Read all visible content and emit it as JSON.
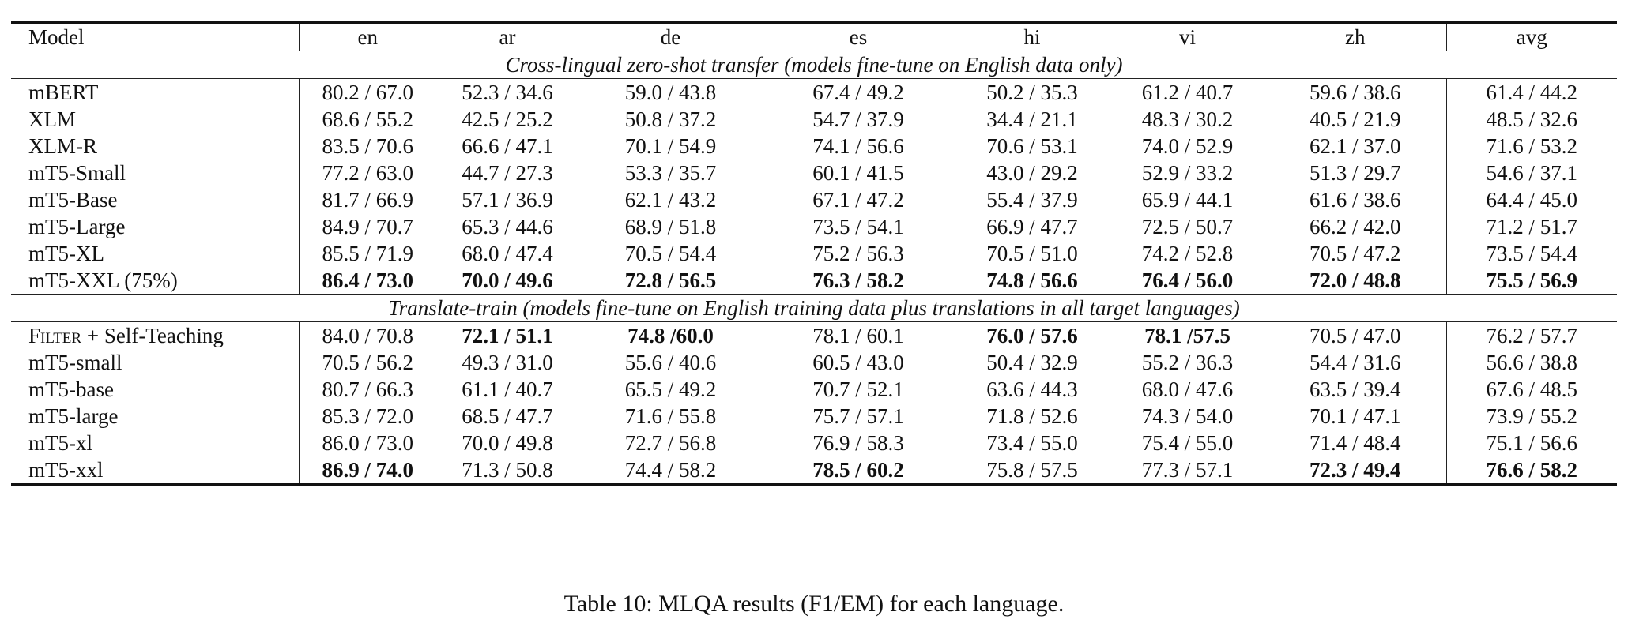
{
  "header": {
    "model": "Model",
    "languages": [
      "en",
      "ar",
      "de",
      "es",
      "hi",
      "vi",
      "zh"
    ],
    "avg": "avg"
  },
  "sections": [
    {
      "title": "Cross-lingual zero-shot transfer (models fine-tune on English data only)",
      "rows": [
        {
          "model": "mBERT",
          "cells": [
            {
              "text": "80.2 / 67.0"
            },
            {
              "text": "52.3 / 34.6"
            },
            {
              "text": "59.0 / 43.8"
            },
            {
              "text": "67.4 / 49.2"
            },
            {
              "text": "50.2 / 35.3"
            },
            {
              "text": "61.2 / 40.7"
            },
            {
              "text": "59.6 / 38.6"
            },
            {
              "text": "61.4 / 44.2"
            }
          ]
        },
        {
          "model": "XLM",
          "cells": [
            {
              "text": "68.6 / 55.2"
            },
            {
              "text": "42.5 / 25.2"
            },
            {
              "text": "50.8 / 37.2"
            },
            {
              "text": "54.7 / 37.9"
            },
            {
              "text": "34.4 / 21.1"
            },
            {
              "text": "48.3 / 30.2"
            },
            {
              "text": "40.5 / 21.9"
            },
            {
              "text": "48.5 / 32.6"
            }
          ]
        },
        {
          "model": "XLM-R",
          "cells": [
            {
              "text": "83.5 / 70.6"
            },
            {
              "text": "66.6 / 47.1"
            },
            {
              "text": "70.1 / 54.9"
            },
            {
              "text": "74.1 / 56.6"
            },
            {
              "text": "70.6 / 53.1"
            },
            {
              "text": "74.0 / 52.9"
            },
            {
              "text": "62.1 / 37.0"
            },
            {
              "text": "71.6 / 53.2"
            }
          ]
        },
        {
          "model": "mT5-Small",
          "cells": [
            {
              "text": "77.2 / 63.0"
            },
            {
              "text": "44.7 / 27.3"
            },
            {
              "text": "53.3 / 35.7"
            },
            {
              "text": "60.1 / 41.5"
            },
            {
              "text": "43.0 / 29.2"
            },
            {
              "text": "52.9 / 33.2"
            },
            {
              "text": "51.3 / 29.7"
            },
            {
              "text": "54.6 / 37.1"
            }
          ]
        },
        {
          "model": "mT5-Base",
          "cells": [
            {
              "text": "81.7 / 66.9"
            },
            {
              "text": "57.1 / 36.9"
            },
            {
              "text": "62.1 / 43.2"
            },
            {
              "text": "67.1 / 47.2"
            },
            {
              "text": "55.4 / 37.9"
            },
            {
              "text": "65.9 / 44.1"
            },
            {
              "text": "61.6 / 38.6"
            },
            {
              "text": "64.4 / 45.0"
            }
          ]
        },
        {
          "model": "mT5-Large",
          "cells": [
            {
              "text": "84.9 / 70.7"
            },
            {
              "text": "65.3 / 44.6"
            },
            {
              "text": "68.9 / 51.8"
            },
            {
              "text": "73.5 / 54.1"
            },
            {
              "text": "66.9 / 47.7"
            },
            {
              "text": "72.5 / 50.7"
            },
            {
              "text": "66.2 / 42.0"
            },
            {
              "text": "71.2 / 51.7"
            }
          ]
        },
        {
          "model": "mT5-XL",
          "cells": [
            {
              "text": "85.5 / 71.9"
            },
            {
              "text": "68.0 / 47.4"
            },
            {
              "text": "70.5 / 54.4"
            },
            {
              "text": "75.2 / 56.3"
            },
            {
              "text": "70.5 / 51.0"
            },
            {
              "text": "74.2 / 52.8"
            },
            {
              "text": "70.5 / 47.2"
            },
            {
              "text": "73.5 / 54.4"
            }
          ]
        },
        {
          "model": "mT5-XXL (75%)",
          "cells": [
            {
              "text": "86.4 / 73.0",
              "bold": true
            },
            {
              "text": "70.0 / 49.6",
              "bold": true
            },
            {
              "text": "72.8 / 56.5",
              "bold": true
            },
            {
              "text": "76.3 / 58.2",
              "bold": true
            },
            {
              "text": "74.8 / 56.6",
              "bold": true
            },
            {
              "text": "76.4 / 56.0",
              "bold": true
            },
            {
              "text": "72.0 / 48.8",
              "bold": true
            },
            {
              "text": "75.5 / 56.9",
              "bold": true
            }
          ]
        }
      ]
    },
    {
      "title": "Translate-train (models fine-tune on English training data plus translations in all target languages)",
      "rows": [
        {
          "model": "Filter + Self-Teaching",
          "smallcaps_prefix": "Filter",
          "model_rest": " + Self-Teaching",
          "cells": [
            {
              "text": "84.0 / 70.8"
            },
            {
              "text": "72.1 / 51.1",
              "bold": true
            },
            {
              "text": "74.8 /60.0",
              "bold": true
            },
            {
              "text": "78.1 / 60.1"
            },
            {
              "text": "76.0 / 57.6",
              "bold": true
            },
            {
              "text": "78.1 /57.5",
              "bold": true
            },
            {
              "text": "70.5 / 47.0"
            },
            {
              "text": "76.2 / 57.7"
            }
          ]
        },
        {
          "model": "mT5-small",
          "cells": [
            {
              "text": "70.5 / 56.2"
            },
            {
              "text": "49.3 / 31.0"
            },
            {
              "text": "55.6 / 40.6"
            },
            {
              "text": "60.5 / 43.0"
            },
            {
              "text": "50.4 / 32.9"
            },
            {
              "text": "55.2 / 36.3"
            },
            {
              "text": "54.4 / 31.6"
            },
            {
              "text": "56.6 / 38.8"
            }
          ]
        },
        {
          "model": "mT5-base",
          "cells": [
            {
              "text": "80.7 / 66.3"
            },
            {
              "text": "61.1 / 40.7"
            },
            {
              "text": "65.5 / 49.2"
            },
            {
              "text": "70.7 / 52.1"
            },
            {
              "text": "63.6 / 44.3"
            },
            {
              "text": "68.0 / 47.6"
            },
            {
              "text": "63.5 / 39.4"
            },
            {
              "text": "67.6 / 48.5"
            }
          ]
        },
        {
          "model": "mT5-large",
          "cells": [
            {
              "text": "85.3 / 72.0"
            },
            {
              "text": "68.5 / 47.7"
            },
            {
              "text": "71.6 / 55.8"
            },
            {
              "text": "75.7 / 57.1"
            },
            {
              "text": "71.8 / 52.6"
            },
            {
              "text": "74.3 / 54.0"
            },
            {
              "text": "70.1 / 47.1"
            },
            {
              "text": "73.9 / 55.2"
            }
          ]
        },
        {
          "model": "mT5-xl",
          "cells": [
            {
              "text": "86.0 / 73.0"
            },
            {
              "text": "70.0 / 49.8"
            },
            {
              "text": "72.7 / 56.8"
            },
            {
              "text": "76.9 / 58.3"
            },
            {
              "text": "73.4 / 55.0"
            },
            {
              "text": "75.4 / 55.0"
            },
            {
              "text": "71.4 / 48.4"
            },
            {
              "text": "75.1 / 56.6"
            }
          ]
        },
        {
          "model": "mT5-xxl",
          "cells": [
            {
              "text": "86.9 / 74.0",
              "bold": true
            },
            {
              "text": "71.3 / 50.8"
            },
            {
              "text": "74.4 / 58.2"
            },
            {
              "text": "78.5 / 60.2",
              "bold": true
            },
            {
              "text": "75.8 / 57.5"
            },
            {
              "text": "77.3 / 57.1"
            },
            {
              "text": "72.3 / 49.4",
              "bold": true
            },
            {
              "text": "76.6 / 58.2",
              "bold": true
            }
          ]
        }
      ]
    }
  ],
  "caption": "Table 10: MLQA results (F1/EM) for each language."
}
